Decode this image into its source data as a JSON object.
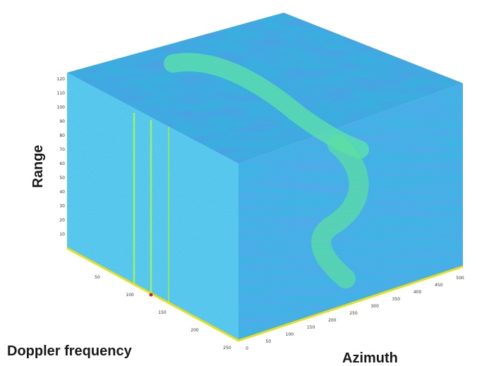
{
  "chart_data": {
    "type": "volume",
    "title": "",
    "axes": {
      "range": {
        "label": "Range",
        "ticks": [
          "",
          "10",
          "20",
          "30",
          "40",
          "50",
          "60",
          "70",
          "80",
          "90",
          "100",
          "110",
          "120"
        ]
      },
      "doppler": {
        "label": "Doppler frequency",
        "ticks": [
          "",
          "50",
          "100",
          "150",
          "200",
          "250"
        ]
      },
      "azimuth": {
        "label": "Azimuth",
        "ticks": [
          "0",
          "50",
          "100",
          "150",
          "200",
          "250",
          "300",
          "350",
          "400",
          "450",
          "500"
        ]
      }
    },
    "colors": {
      "background": "#3fb7e6",
      "low": "#2b6fd6",
      "high": "#56e0a0",
      "peak": "#b5ff5a",
      "floor": "#e8e01e"
    }
  }
}
